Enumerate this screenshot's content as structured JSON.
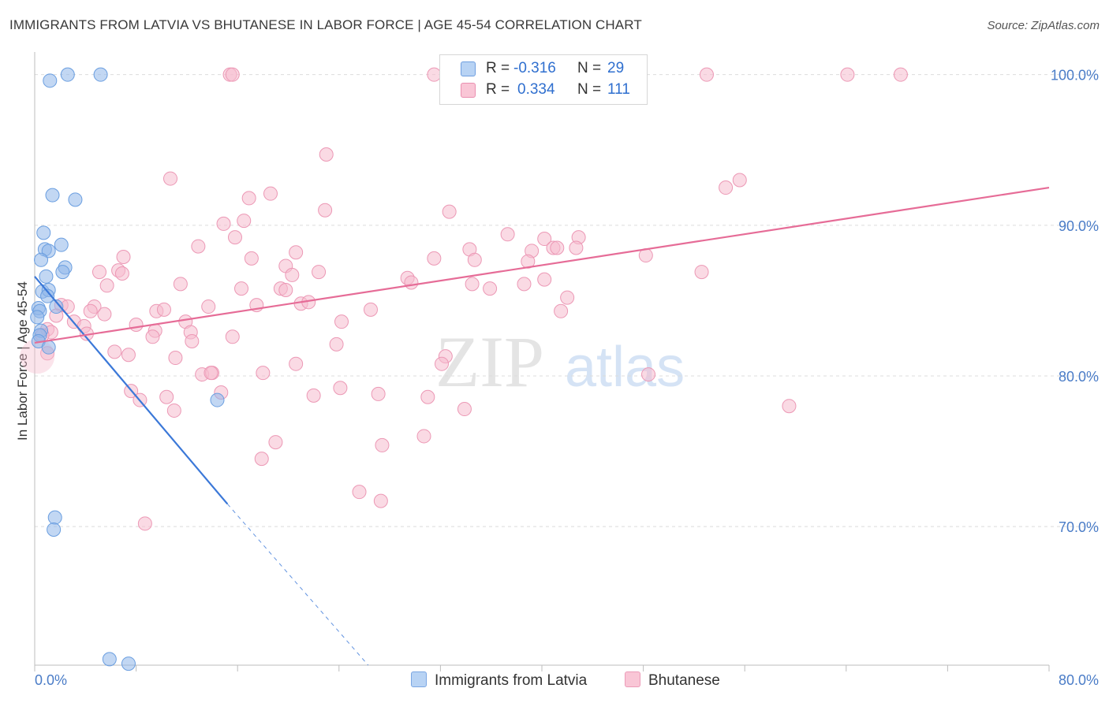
{
  "title": "IMMIGRANTS FROM LATVIA VS BHUTANESE IN LABOR FORCE | AGE 45-54 CORRELATION CHART",
  "source": "Source: ZipAtlas.com",
  "watermark": {
    "zip": "ZIP",
    "atlas": "atlas"
  },
  "legend": {
    "rows": [
      {
        "r_label": "R =",
        "r_value": "-0.316",
        "n_label": "N =",
        "n_value": "29",
        "color": "#a9c8f0",
        "border": "#6f9fe0"
      },
      {
        "r_label": "R =",
        "r_value": "0.334",
        "n_label": "N =",
        "n_value": "111",
        "color": "#f7bfd0",
        "border": "#ea8fb0"
      }
    ]
  },
  "bottom_legend": [
    {
      "label": "Immigrants from Latvia",
      "color": "#b8d3f4",
      "border": "#7aa6e3"
    },
    {
      "label": "Bhutanese",
      "color": "#f9c6d6",
      "border": "#ec9bb8"
    }
  ],
  "chart_data": {
    "type": "scatter",
    "title": "IMMIGRANTS FROM LATVIA VS BHUTANESE IN LABOR FORCE | AGE 45-54 CORRELATION CHART",
    "xlabel": "",
    "ylabel": "In Labor Force | Age 45-54",
    "xlim": [
      0,
      80
    ],
    "ylim": [
      60.8,
      101.5
    ],
    "x_tick_labels": [
      "0.0%",
      "80.0%"
    ],
    "y_ticks": [
      70,
      80,
      90,
      100
    ],
    "y_tick_labels": [
      "70.0%",
      "80.0%",
      "90.0%",
      "100.0%"
    ],
    "grid": true,
    "series": [
      {
        "name": "Immigrants from Latvia",
        "color": "#8fb6ea",
        "stroke": "#6a9ee0",
        "trend_color": "#3b78d8",
        "r": -0.316,
        "n": 29,
        "trend": {
          "x": [
            0.0,
            15.2
          ],
          "y": [
            86.6,
            71.5
          ],
          "dash_to": [
            26.3,
            60.8
          ]
        },
        "points": [
          [
            1.2,
            99.6
          ],
          [
            2.6,
            100.0
          ],
          [
            5.2,
            100.0
          ],
          [
            1.4,
            92.0
          ],
          [
            3.2,
            91.7
          ],
          [
            0.7,
            89.5
          ],
          [
            0.8,
            88.4
          ],
          [
            1.1,
            88.3
          ],
          [
            2.1,
            88.7
          ],
          [
            0.5,
            87.7
          ],
          [
            2.4,
            87.2
          ],
          [
            0.9,
            86.6
          ],
          [
            2.2,
            86.9
          ],
          [
            0.6,
            85.6
          ],
          [
            1.1,
            85.7
          ],
          [
            1.0,
            85.3
          ],
          [
            0.3,
            84.5
          ],
          [
            0.4,
            84.3
          ],
          [
            1.7,
            84.6
          ],
          [
            0.2,
            83.9
          ],
          [
            0.5,
            83.0
          ],
          [
            0.4,
            82.7
          ],
          [
            0.3,
            82.3
          ],
          [
            1.1,
            81.9
          ],
          [
            14.4,
            78.4
          ],
          [
            1.6,
            70.6
          ],
          [
            1.5,
            69.8
          ],
          [
            5.9,
            61.2
          ],
          [
            7.4,
            60.9
          ]
        ]
      },
      {
        "name": "Bhutanese",
        "color": "#f6bccd",
        "stroke": "#ec98b5",
        "trend_color": "#e66c97",
        "r": 0.334,
        "n": 111,
        "trend": {
          "x": [
            0.0,
            80.0
          ],
          "y": [
            82.2,
            92.5
          ]
        },
        "points": [
          [
            15.4,
            100.0
          ],
          [
            31.5,
            100.0
          ],
          [
            64.1,
            100.0
          ],
          [
            68.3,
            100.0
          ],
          [
            23.0,
            94.7
          ],
          [
            10.7,
            93.1
          ],
          [
            55.6,
            93.0
          ],
          [
            54.5,
            92.5
          ],
          [
            18.6,
            92.1
          ],
          [
            16.9,
            91.8
          ],
          [
            22.9,
            91.0
          ],
          [
            32.7,
            90.9
          ],
          [
            16.5,
            90.3
          ],
          [
            14.9,
            90.1
          ],
          [
            15.8,
            89.2
          ],
          [
            37.3,
            89.4
          ],
          [
            40.2,
            89.1
          ],
          [
            40.9,
            88.5
          ],
          [
            42.9,
            89.2
          ],
          [
            12.9,
            88.6
          ],
          [
            20.6,
            88.2
          ],
          [
            34.3,
            88.4
          ],
          [
            39.2,
            88.3
          ],
          [
            41.2,
            88.5
          ],
          [
            7.0,
            87.9
          ],
          [
            17.1,
            87.8
          ],
          [
            31.5,
            87.8
          ],
          [
            34.7,
            87.7
          ],
          [
            42.7,
            88.5
          ],
          [
            19.8,
            87.3
          ],
          [
            38.9,
            87.6
          ],
          [
            48.2,
            88.0
          ],
          [
            5.1,
            86.9
          ],
          [
            6.6,
            87.0
          ],
          [
            22.4,
            86.9
          ],
          [
            20.3,
            86.7
          ],
          [
            6.9,
            86.8
          ],
          [
            29.4,
            86.5
          ],
          [
            11.5,
            86.1
          ],
          [
            5.7,
            86.0
          ],
          [
            16.3,
            85.8
          ],
          [
            19.4,
            85.8
          ],
          [
            19.8,
            85.7
          ],
          [
            29.7,
            86.2
          ],
          [
            34.5,
            86.1
          ],
          [
            35.9,
            85.8
          ],
          [
            40.2,
            86.4
          ],
          [
            38.6,
            86.1
          ],
          [
            2.1,
            84.7
          ],
          [
            2.6,
            84.6
          ],
          [
            4.7,
            84.6
          ],
          [
            13.7,
            84.6
          ],
          [
            17.5,
            84.7
          ],
          [
            21.0,
            84.8
          ],
          [
            21.6,
            84.9
          ],
          [
            26.5,
            84.4
          ],
          [
            9.6,
            84.3
          ],
          [
            10.2,
            84.4
          ],
          [
            4.4,
            84.3
          ],
          [
            1.7,
            84.0
          ],
          [
            5.5,
            84.1
          ],
          [
            3.1,
            83.6
          ],
          [
            8.0,
            83.4
          ],
          [
            11.9,
            83.6
          ],
          [
            24.2,
            83.6
          ],
          [
            3.9,
            83.3
          ],
          [
            1.0,
            83.1
          ],
          [
            9.5,
            83.0
          ],
          [
            4.1,
            82.8
          ],
          [
            1.3,
            82.9
          ],
          [
            0.6,
            82.7
          ],
          [
            12.3,
            82.9
          ],
          [
            9.3,
            82.6
          ],
          [
            15.6,
            82.6
          ],
          [
            12.4,
            82.3
          ],
          [
            23.8,
            82.1
          ],
          [
            6.3,
            81.6
          ],
          [
            7.4,
            81.4
          ],
          [
            11.1,
            81.2
          ],
          [
            20.6,
            80.8
          ],
          [
            32.4,
            81.3
          ],
          [
            32.1,
            80.8
          ],
          [
            13.2,
            80.1
          ],
          [
            14.0,
            80.2
          ],
          [
            13.9,
            80.2
          ],
          [
            18.0,
            80.2
          ],
          [
            1.0,
            81.5
          ],
          [
            7.6,
            79.0
          ],
          [
            8.3,
            78.4
          ],
          [
            10.4,
            78.6
          ],
          [
            14.7,
            78.9
          ],
          [
            22.0,
            78.7
          ],
          [
            24.1,
            79.2
          ],
          [
            27.1,
            78.8
          ],
          [
            31.0,
            78.6
          ],
          [
            33.9,
            77.8
          ],
          [
            11.0,
            77.7
          ],
          [
            52.6,
            86.9
          ],
          [
            48.4,
            80.1
          ],
          [
            59.5,
            78.0
          ],
          [
            30.7,
            76.0
          ],
          [
            19.0,
            75.6
          ],
          [
            17.9,
            74.5
          ],
          [
            27.4,
            75.4
          ],
          [
            25.6,
            72.3
          ],
          [
            27.3,
            71.7
          ],
          [
            8.7,
            70.2
          ],
          [
            42.0,
            85.2
          ],
          [
            41.5,
            84.3
          ],
          [
            15.6,
            100.0
          ],
          [
            53.0,
            100.0
          ]
        ]
      }
    ]
  }
}
